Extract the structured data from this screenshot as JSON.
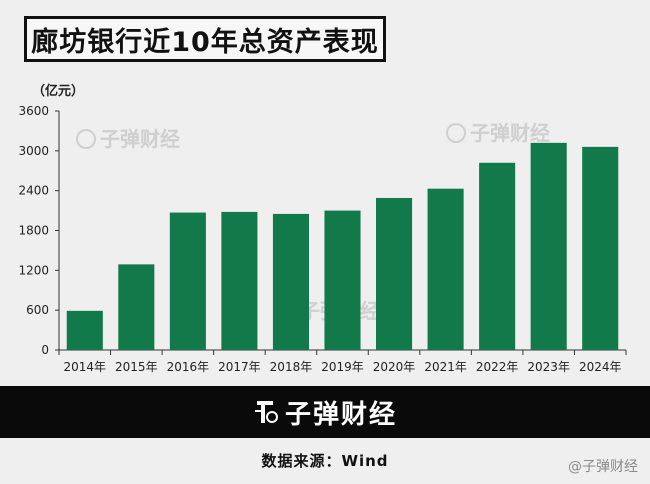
{
  "title": "廊坊银行近10年总资产表现",
  "brand": "子弹财经",
  "source": "数据来源：Wind",
  "corner_watermark": "@子弹财经",
  "colors": {
    "bar": "#127a4a",
    "band": "#0a0a0a",
    "background": "#efefef"
  },
  "chart_data": {
    "type": "bar",
    "unit": "（亿元）",
    "categories": [
      "2014年",
      "2015年",
      "2016年",
      "2017年",
      "2018年",
      "2019年",
      "2020年",
      "2021年",
      "2022年",
      "2023年",
      "2024年"
    ],
    "values": [
      590,
      1290,
      2070,
      2080,
      2050,
      2100,
      2290,
      2430,
      2820,
      3120,
      3060
    ],
    "ylim": [
      0,
      3600
    ],
    "yticks": [
      0,
      600,
      1200,
      1800,
      2400,
      3000,
      3600
    ],
    "ytick_labels": [
      "0",
      "600",
      "1200",
      "1800",
      "2400",
      "3000",
      "3600"
    ],
    "grid": false,
    "watermarks": [
      "子弹财经",
      "子弹财经",
      "子弹财经"
    ]
  }
}
